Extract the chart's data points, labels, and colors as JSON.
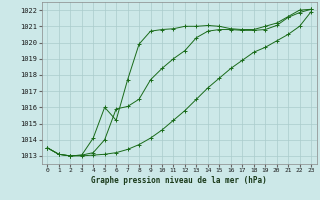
{
  "title": "Graphe pression niveau de la mer (hPa)",
  "bg_color": "#cce8e8",
  "grid_color": "#aacccc",
  "line_color": "#1a6b1a",
  "xlim": [
    -0.5,
    23.5
  ],
  "ylim": [
    1012.5,
    1022.5
  ],
  "xticks": [
    0,
    1,
    2,
    3,
    4,
    5,
    6,
    7,
    8,
    9,
    10,
    11,
    12,
    13,
    14,
    15,
    16,
    17,
    18,
    19,
    20,
    21,
    22,
    23
  ],
  "yticks": [
    1013,
    1014,
    1015,
    1016,
    1017,
    1018,
    1019,
    1020,
    1021,
    1022
  ],
  "series1_x": [
    0,
    1,
    2,
    3,
    4,
    5,
    6,
    7,
    8,
    9,
    10,
    11,
    12,
    13,
    14,
    15,
    16,
    17,
    18,
    19,
    20,
    21,
    22,
    23
  ],
  "series1_y": [
    1013.5,
    1013.1,
    1013.0,
    1013.05,
    1014.1,
    1016.0,
    1015.2,
    1017.7,
    1019.9,
    1020.7,
    1020.8,
    1020.85,
    1021.0,
    1021.0,
    1021.05,
    1021.0,
    1020.85,
    1020.8,
    1020.8,
    1021.0,
    1021.2,
    1021.6,
    1022.0,
    1022.05
  ],
  "series2_x": [
    0,
    1,
    2,
    3,
    4,
    5,
    6,
    7,
    8,
    9,
    10,
    11,
    12,
    13,
    14,
    15,
    16,
    17,
    18,
    19,
    20,
    21,
    22,
    23
  ],
  "series2_y": [
    1013.5,
    1013.1,
    1013.0,
    1013.05,
    1013.2,
    1014.0,
    1015.9,
    1016.05,
    1016.5,
    1017.7,
    1018.4,
    1019.0,
    1019.5,
    1020.3,
    1020.7,
    1020.8,
    1020.8,
    1020.75,
    1020.75,
    1020.8,
    1021.05,
    1021.55,
    1021.85,
    1022.05
  ],
  "series3_x": [
    0,
    1,
    2,
    3,
    4,
    5,
    6,
    7,
    8,
    9,
    10,
    11,
    12,
    13,
    14,
    15,
    16,
    17,
    18,
    19,
    20,
    21,
    22,
    23
  ],
  "series3_y": [
    1013.5,
    1013.1,
    1013.0,
    1013.0,
    1013.05,
    1013.1,
    1013.2,
    1013.4,
    1013.7,
    1014.1,
    1014.6,
    1015.2,
    1015.8,
    1016.5,
    1017.2,
    1017.8,
    1018.4,
    1018.9,
    1019.4,
    1019.7,
    1020.1,
    1020.5,
    1021.0,
    1021.9
  ]
}
